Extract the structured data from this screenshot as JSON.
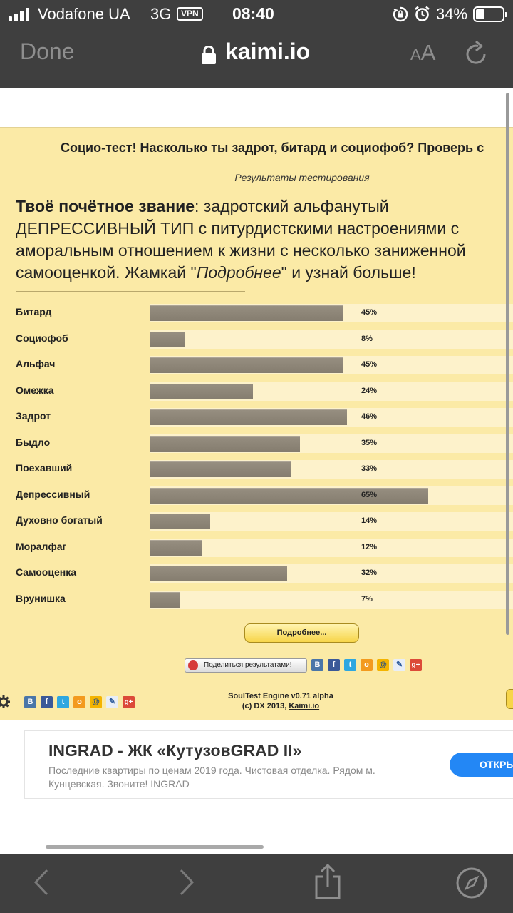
{
  "status_bar": {
    "carrier": "Vodafone UA",
    "network": "3G",
    "vpn": "VPN",
    "time": "08:40",
    "battery": "34%",
    "battery_level": 0.34
  },
  "browser": {
    "done_label": "Done",
    "host": "kaimi.io",
    "text_size_small": "A",
    "text_size_large": "A"
  },
  "test": {
    "title": "Социо-тест! Насколько ты задрот, битард и социофоб? Проверь с",
    "results_label": "Результаты тестирования",
    "rank_prefix": "Твоё почётное звание",
    "rank_line1": ": задротский альфанутый",
    "rank_line2": "ДЕПРЕССИВНЫЙ ТИП с питурдистскими настроениями с",
    "rank_line3": "аморальным отношением к жизни с несколько заниженной",
    "rank_line4_a": "самооценкой. Жамкай \"",
    "rank_line4_italic": "Подробнее",
    "rank_line4_b": "\" и узнай больше!",
    "more_button": "Подробнее...",
    "share_button": "Поделиться результатами!",
    "engine_line1": "SoulTest Engine v0.71 alpha",
    "engine_line2_prefix": "(c) DX 2013, ",
    "engine_link": "Kaimi.io"
  },
  "chart_data": {
    "type": "bar",
    "categories": [
      "Битард",
      "Социофоб",
      "Альфач",
      "Омежка",
      "Задрот",
      "Быдло",
      "Поехавший",
      "Депрессивный",
      "Духовно богатый",
      "Моралфаг",
      "Самооценка",
      "Врунишка"
    ],
    "values": [
      45,
      8,
      45,
      24,
      46,
      35,
      33,
      65,
      14,
      12,
      32,
      7
    ],
    "labels": [
      "45%",
      "8%",
      "45%",
      "24%",
      "46%",
      "35%",
      "33%",
      "65%",
      "14%",
      "12%",
      "32%",
      "7%"
    ],
    "ylim": [
      0,
      100
    ]
  },
  "social_icons": [
    {
      "name": "vk",
      "glyph": "В"
    },
    {
      "name": "facebook",
      "glyph": "f"
    },
    {
      "name": "twitter",
      "glyph": "t"
    },
    {
      "name": "odnoklassniki",
      "glyph": "о"
    },
    {
      "name": "mail-ru",
      "glyph": "@"
    },
    {
      "name": "livejournal",
      "glyph": "✎"
    },
    {
      "name": "google-plus",
      "glyph": "g+"
    }
  ],
  "ad": {
    "title": "INGRAD - ЖК «КутузовGRAD II»",
    "description": "Последние квартиры по ценам 2019 года. Чистовая отделка. Рядом м. Кунцевская. Звоните! INGRAD",
    "button": "ОТКРЫТЬ"
  },
  "colors": {
    "chrome": "#3f3f3f",
    "test_background": "#fbeaa6",
    "bar": "#8d8577",
    "button_yellow": "#f7d54a",
    "ad_button": "#2387f5"
  }
}
